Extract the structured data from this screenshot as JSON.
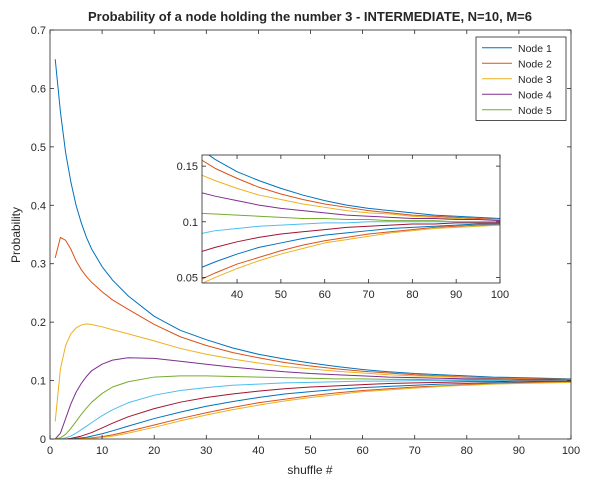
{
  "chart_data": {
    "type": "line",
    "title": "Probability of a node holding the number 3 - INTERMEDIATE, N=10, M=6",
    "xlabel": "shuffle #",
    "ylabel": "Probability",
    "xlim": [
      0,
      100
    ],
    "ylim": [
      0,
      0.7
    ],
    "xticks": [
      0,
      10,
      20,
      30,
      40,
      50,
      60,
      70,
      80,
      90,
      100
    ],
    "yticks": [
      0,
      0.1,
      0.2,
      0.3,
      0.4,
      0.5,
      0.6,
      0.7
    ],
    "grid": false,
    "legend_position": "top-right",
    "legend": [
      "Node 1",
      "Node 2",
      "Node 3",
      "Node 4",
      "Node 5"
    ],
    "x": [
      1,
      2,
      3,
      4,
      5,
      6,
      7,
      8,
      10,
      12,
      15,
      20,
      25,
      30,
      35,
      40,
      45,
      50,
      55,
      60,
      65,
      70,
      75,
      80,
      85,
      90,
      95,
      100
    ],
    "series": [
      {
        "name": "Node 1",
        "color": "#0072BD",
        "values": [
          0.65,
          0.56,
          0.49,
          0.44,
          0.4,
          0.37,
          0.345,
          0.325,
          0.295,
          0.272,
          0.245,
          0.21,
          0.186,
          0.17,
          0.156,
          0.145,
          0.137,
          0.13,
          0.124,
          0.119,
          0.115,
          0.112,
          0.11,
          0.108,
          0.106,
          0.105,
          0.104,
          0.103
        ]
      },
      {
        "name": "Node 2",
        "color": "#D95319",
        "values": [
          0.31,
          0.345,
          0.34,
          0.325,
          0.305,
          0.29,
          0.278,
          0.268,
          0.252,
          0.238,
          0.222,
          0.196,
          0.175,
          0.16,
          0.148,
          0.139,
          0.131,
          0.125,
          0.12,
          0.116,
          0.113,
          0.11,
          0.108,
          0.106,
          0.105,
          0.104,
          0.103,
          0.102
        ]
      },
      {
        "name": "Node 3",
        "color": "#EDB120",
        "values": [
          0.03,
          0.12,
          0.16,
          0.18,
          0.19,
          0.195,
          0.197,
          0.196,
          0.192,
          0.187,
          0.18,
          0.168,
          0.155,
          0.145,
          0.137,
          0.13,
          0.124,
          0.12,
          0.116,
          0.113,
          0.11,
          0.108,
          0.107,
          0.105,
          0.104,
          0.103,
          0.102,
          0.102
        ]
      },
      {
        "name": "Node 4",
        "color": "#7E2F8E",
        "values": [
          0.0,
          0.01,
          0.035,
          0.06,
          0.08,
          0.095,
          0.107,
          0.117,
          0.128,
          0.135,
          0.139,
          0.138,
          0.133,
          0.128,
          0.123,
          0.119,
          0.115,
          0.112,
          0.11,
          0.108,
          0.106,
          0.105,
          0.104,
          0.103,
          0.103,
          0.102,
          0.102,
          0.101
        ]
      },
      {
        "name": "Node 5",
        "color": "#77AC30",
        "values": [
          0.0,
          0.002,
          0.008,
          0.018,
          0.03,
          0.042,
          0.053,
          0.063,
          0.078,
          0.089,
          0.098,
          0.106,
          0.108,
          0.108,
          0.107,
          0.106,
          0.105,
          0.104,
          0.103,
          0.103,
          0.102,
          0.102,
          0.101,
          0.101,
          0.101,
          0.1,
          0.1,
          0.1
        ]
      },
      {
        "color": "#4DBEEE",
        "values": [
          0.0,
          0.0,
          0.002,
          0.005,
          0.01,
          0.016,
          0.022,
          0.028,
          0.04,
          0.05,
          0.062,
          0.075,
          0.083,
          0.088,
          0.092,
          0.094,
          0.096,
          0.097,
          0.098,
          0.099,
          0.099,
          0.1,
          0.1,
          0.1,
          0.1,
          0.1,
          0.1,
          0.1
        ]
      },
      {
        "color": "#A2142F",
        "values": [
          0.0,
          0.0,
          0.0,
          0.001,
          0.003,
          0.005,
          0.008,
          0.011,
          0.019,
          0.027,
          0.038,
          0.052,
          0.063,
          0.071,
          0.077,
          0.082,
          0.086,
          0.089,
          0.091,
          0.093,
          0.095,
          0.096,
          0.097,
          0.098,
          0.098,
          0.099,
          0.099,
          0.099
        ]
      },
      {
        "color": "#0072BD",
        "values": [
          0.0,
          0.0,
          0.0,
          0.0,
          0.001,
          0.002,
          0.003,
          0.005,
          0.009,
          0.014,
          0.022,
          0.035,
          0.046,
          0.056,
          0.064,
          0.071,
          0.077,
          0.081,
          0.085,
          0.088,
          0.09,
          0.092,
          0.094,
          0.095,
          0.096,
          0.097,
          0.098,
          0.098
        ]
      },
      {
        "color": "#D95319",
        "values": [
          0.0,
          0.0,
          0.0,
          0.0,
          0.0,
          0.001,
          0.001,
          0.002,
          0.004,
          0.007,
          0.013,
          0.024,
          0.035,
          0.045,
          0.054,
          0.062,
          0.068,
          0.074,
          0.079,
          0.083,
          0.086,
          0.089,
          0.091,
          0.093,
          0.095,
          0.096,
          0.097,
          0.097
        ]
      },
      {
        "color": "#EDB120",
        "values": [
          0.0,
          0.0,
          0.0,
          0.0,
          0.0,
          0.0,
          0.001,
          0.001,
          0.003,
          0.005,
          0.01,
          0.02,
          0.031,
          0.041,
          0.05,
          0.058,
          0.065,
          0.071,
          0.076,
          0.081,
          0.084,
          0.087,
          0.09,
          0.092,
          0.094,
          0.095,
          0.096,
          0.097
        ]
      }
    ],
    "inset": {
      "xlim": [
        32,
        100
      ],
      "ylim": [
        0.045,
        0.16
      ],
      "xticks": [
        40,
        50,
        60,
        70,
        80,
        90,
        100
      ],
      "yticks": [
        0.05,
        0.1,
        0.15
      ],
      "ytick_labels": [
        "0.05",
        "0.1",
        "0.15"
      ]
    }
  }
}
